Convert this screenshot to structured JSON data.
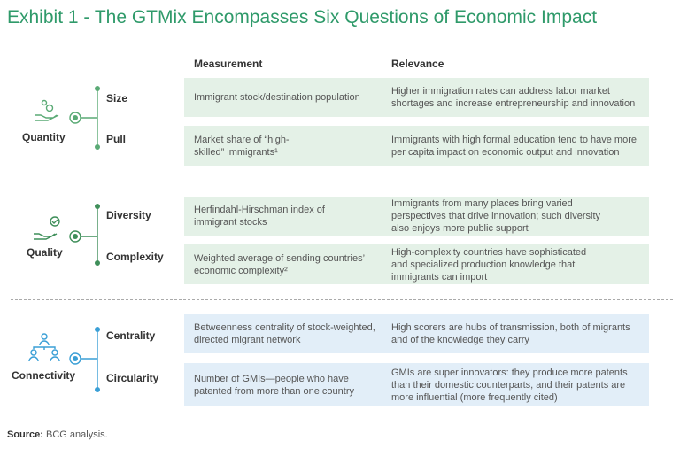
{
  "title": "Exhibit 1 - The GTMix Encompasses Six Questions of Economic Impact",
  "headers": {
    "measurement": "Measurement",
    "relevance": "Relevance"
  },
  "groups": [
    {
      "name": "Quantity",
      "rows": [
        {
          "label": "Size",
          "measurement": "Immigrant stock/destination population",
          "relevance": "Higher immigration rates can address labor market shortages and increase entrepreneurship and innovation"
        },
        {
          "label": "Pull",
          "measurement": "Market share of “high-skilled” immigrants¹",
          "relevance": "Immigrants with high formal education tend to have more per capita impact on economic output and innovation"
        }
      ]
    },
    {
      "name": "Quality",
      "rows": [
        {
          "label": "Diversity",
          "measurement": "Herfindahl-Hirschman index of immigrant stocks",
          "relevance": "Immigrants from many places bring varied perspectives that drive innovation; such diversity also enjoys more public support"
        },
        {
          "label": "Complexity",
          "measurement": "Weighted average of sending countries’ economic complexity²",
          "relevance": "High-complexity countries have sophisticated and specialized production knowledge that immigrants can import"
        }
      ]
    },
    {
      "name": "Connectivity",
      "rows": [
        {
          "label": "Centrality",
          "measurement": "Betweenness centrality of stock-weighted, directed migrant network",
          "relevance": "High scorers are hubs of transmission, both of migrants and of the knowledge they carry"
        },
        {
          "label": "Circularity",
          "measurement": "Number of GMIs—people who have patented from more than one country",
          "relevance": "GMIs are super innovators: they produce more patents than their domestic counterparts, and their patents are more influential (more frequently cited)"
        }
      ]
    }
  ],
  "source": {
    "label": "Source:",
    "text": "BCG analysis."
  }
}
